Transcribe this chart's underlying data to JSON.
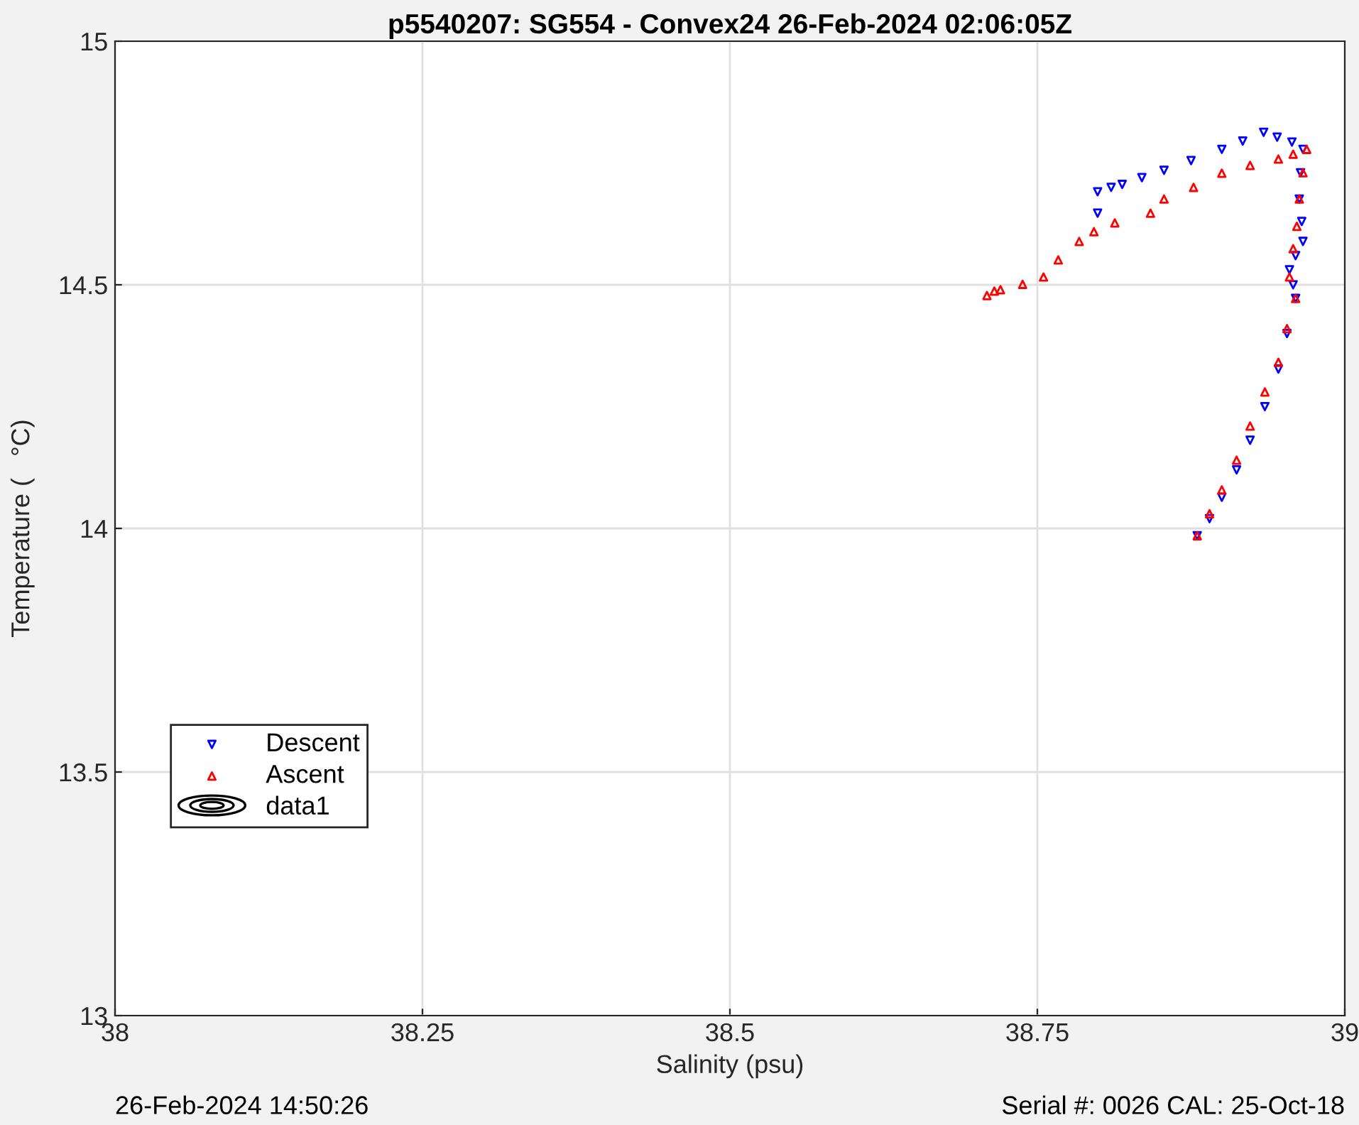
{
  "chart_data": {
    "type": "scatter",
    "title": "p5540207: SG554 - Convex24 26-Feb-2024 02:06:05Z",
    "xlabel": "Salinity (psu)",
    "ylabel": "Temperature (   °C)",
    "xlim": [
      38,
      39
    ],
    "xticks": [
      38,
      38.25,
      38.5,
      38.75,
      39
    ],
    "ylim": [
      13,
      15
    ],
    "yticks": [
      13,
      13.5,
      14,
      14.5,
      15
    ],
    "grid": true,
    "legend": "bottom left",
    "series": [
      {
        "name": "Descent",
        "color": "#0000ff",
        "marker": "triangle_down",
        "x": [
          38.799,
          38.799,
          38.81,
          38.819,
          38.835,
          38.853,
          38.875,
          38.9,
          38.917,
          38.934,
          38.945,
          38.957,
          38.966,
          38.964,
          38.963,
          38.965,
          38.966,
          38.96,
          38.955,
          38.958,
          38.96,
          38.953,
          38.946,
          38.935,
          38.923,
          38.912,
          38.9,
          38.89,
          38.88
        ],
        "values": [
          14.647,
          14.691,
          14.7,
          14.706,
          14.72,
          14.735,
          14.755,
          14.778,
          14.795,
          14.813,
          14.803,
          14.793,
          14.778,
          14.73,
          14.676,
          14.63,
          14.589,
          14.56,
          14.531,
          14.5,
          14.472,
          14.4,
          14.327,
          14.25,
          14.181,
          14.12,
          14.064,
          14.02,
          13.985
        ]
      },
      {
        "name": "Ascent",
        "color": "#ff0000",
        "marker": "triangle",
        "x": [
          38.88,
          38.89,
          38.9,
          38.912,
          38.923,
          38.935,
          38.946,
          38.953,
          38.96,
          38.955,
          38.958,
          38.961,
          38.963,
          38.966,
          38.969,
          38.958,
          38.946,
          38.923,
          38.9,
          38.877,
          38.853,
          38.842,
          38.813,
          38.796,
          38.784,
          38.767,
          38.755,
          38.738,
          38.72,
          38.715,
          38.709
        ],
        "values": [
          13.985,
          14.03,
          14.079,
          14.14,
          14.21,
          14.28,
          14.341,
          14.41,
          14.472,
          14.516,
          14.574,
          14.62,
          14.676,
          14.73,
          14.778,
          14.768,
          14.758,
          14.745,
          14.729,
          14.7,
          14.676,
          14.647,
          14.627,
          14.609,
          14.589,
          14.551,
          14.516,
          14.501,
          14.49,
          14.487,
          14.478
        ]
      },
      {
        "name": "data1",
        "type": "other",
        "color": "#000000"
      }
    ],
    "annotations": [
      "26-Feb-2024 14:50:26",
      "Serial #: 0026 CAL: 25-Oct-18"
    ]
  }
}
